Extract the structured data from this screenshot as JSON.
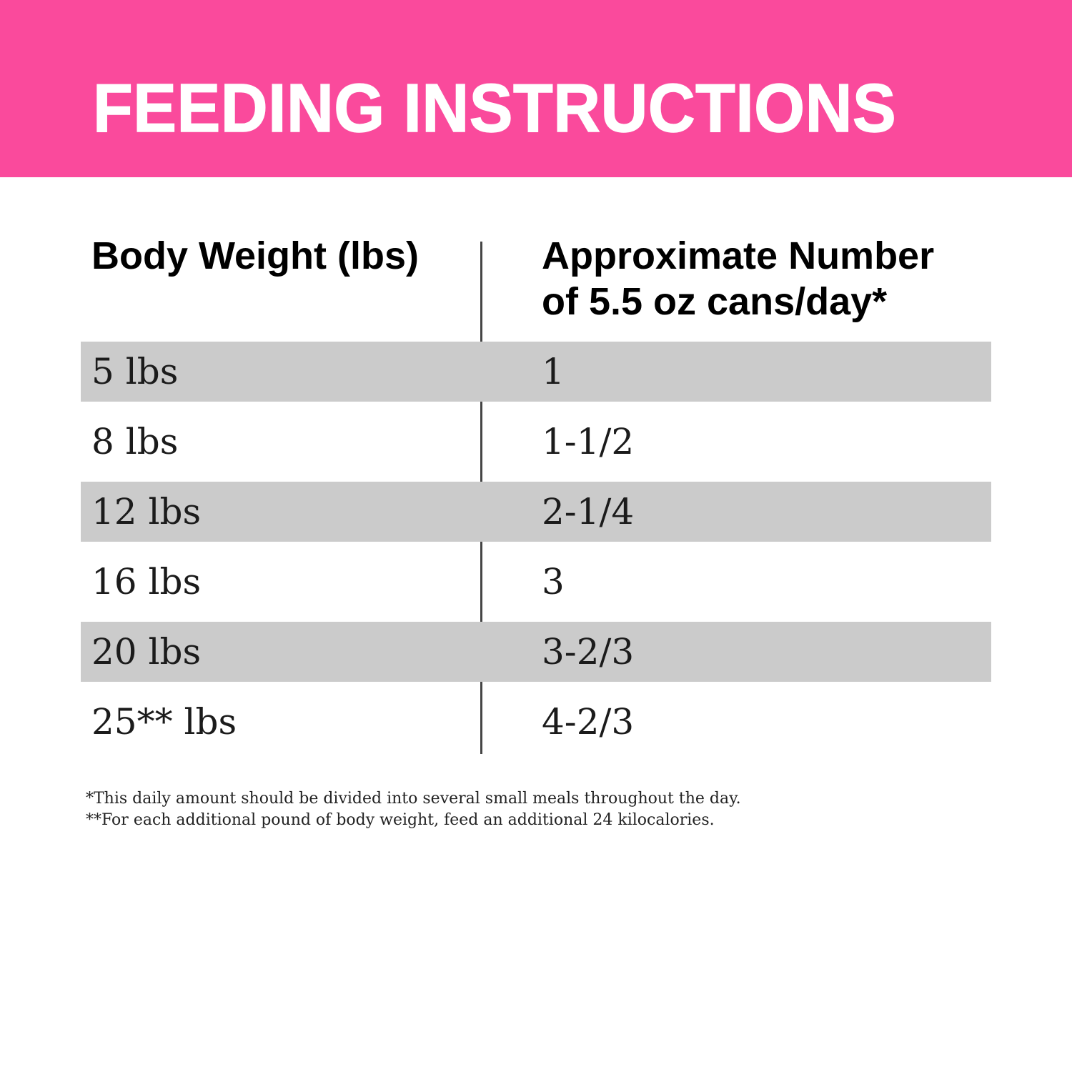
{
  "banner": {
    "title": "FEEDING INSTRUCTIONS"
  },
  "table": {
    "col1_header": "Body Weight (lbs)",
    "col2_header": "Approximate Number\nof 5.5 oz cans/day*",
    "rows": [
      {
        "weight": "5 lbs",
        "cans": "1",
        "shaded": true
      },
      {
        "weight": "8 lbs",
        "cans": "1-1/2",
        "shaded": false
      },
      {
        "weight": "12 lbs",
        "cans": "2-1/4",
        "shaded": true
      },
      {
        "weight": "16 lbs",
        "cans": "3",
        "shaded": false
      },
      {
        "weight": "20 lbs",
        "cans": "3-2/3",
        "shaded": true
      },
      {
        "weight": "25** lbs",
        "cans": "4-2/3",
        "shaded": false
      }
    ]
  },
  "footnotes": {
    "daily_amount": "*This daily amount should be divided into several small meals throughout the day.",
    "additional_weight": "**For each additional pound of body weight, feed an additional 24 kilocalories."
  },
  "colors": {
    "banner_pink": "#fa4a9c",
    "shaded_row_gray": "#cbcbcb",
    "divider_gray": "#454545",
    "title_text": "#ffffff",
    "body_text": "#1b1b1b"
  }
}
